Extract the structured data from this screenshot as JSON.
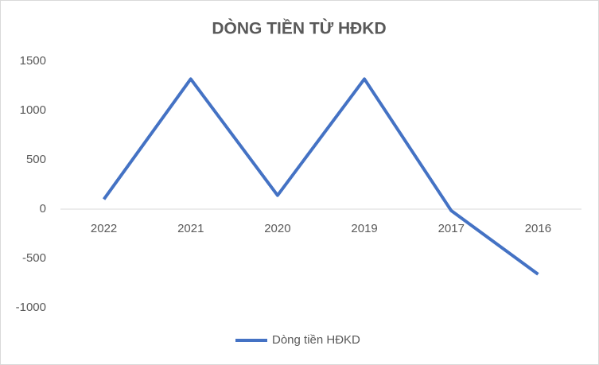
{
  "chart_data": {
    "type": "line",
    "title": "DÒNG TIỀN TỪ HĐKD",
    "categories": [
      "2022",
      "2021",
      "2020",
      "2019",
      "2017",
      "2016"
    ],
    "series": [
      {
        "name": "Dòng tiền HĐKD",
        "color": "#4472c4",
        "values": [
          100,
          1320,
          140,
          1320,
          -15,
          -660
        ]
      }
    ],
    "ylim": [
      -1000,
      1500
    ],
    "yticks": [
      -1000,
      -500,
      0,
      500,
      1000,
      1500
    ],
    "grid": false,
    "legend": "bottom"
  }
}
